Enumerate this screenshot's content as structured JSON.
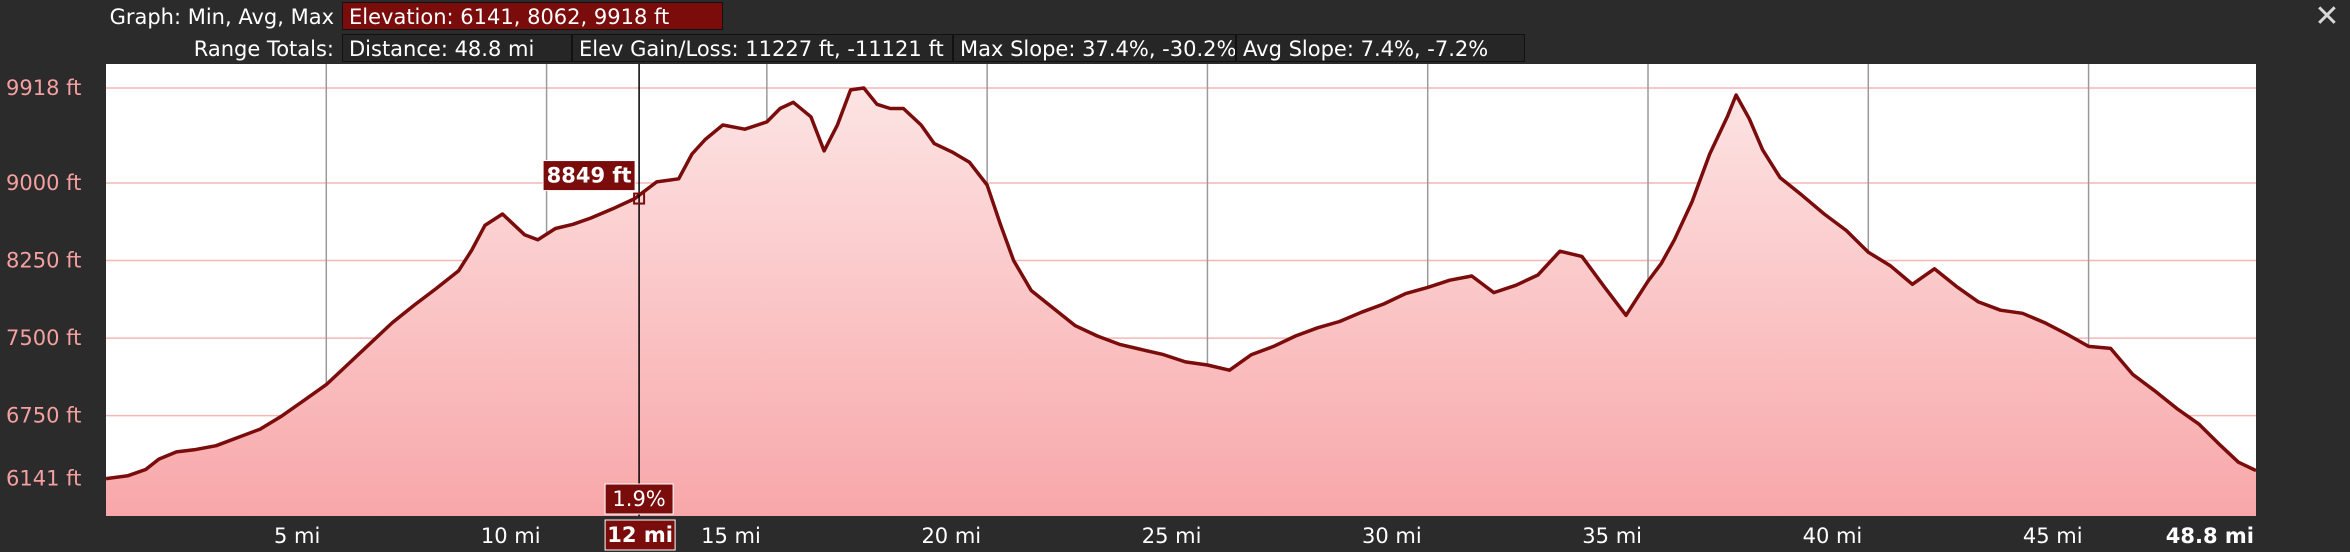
{
  "header": {
    "graph_label": "Graph: Min, Avg, Max",
    "elevation_box": "Elevation: 6141, 8062, 9918 ft",
    "range_label": "Range Totals:",
    "distance_box": "Distance: 48.8 mi",
    "gain_loss_box": "Elev Gain/Loss: 11227 ft, -11121 ft",
    "max_slope_box": "Max Slope: 37.4%, -30.2%",
    "avg_slope_box": "Avg Slope: 7.4%, -7.2%"
  },
  "cursor": {
    "distance_label": "12 mi",
    "elevation_label": "8849 ft",
    "slope_label": "1.9%"
  },
  "colors": {
    "background": "#2b2b2b",
    "plot_area": "#ffffff",
    "line": "#7a0c0c",
    "fill_top": "#fde4e4",
    "fill_bottom": "#f8a7a9",
    "grid_h": "#f4b6b6",
    "grid_v": "#9a9a9a",
    "tick_y": "#f4a0a0",
    "tick_x": "#ffffff",
    "badge": "#7a0c0c"
  },
  "chart_data": {
    "type": "area",
    "xlabel": "",
    "ylabel": "",
    "xlim": [
      0,
      48.8
    ],
    "ylim": [
      5780,
      10150
    ],
    "x_ticks": [
      {
        "value": 5,
        "label": "5 mi"
      },
      {
        "value": 10,
        "label": "10 mi"
      },
      {
        "value": 15,
        "label": "15 mi"
      },
      {
        "value": 20,
        "label": "20 mi"
      },
      {
        "value": 25,
        "label": "25 mi"
      },
      {
        "value": 30,
        "label": "30 mi"
      },
      {
        "value": 35,
        "label": "35 mi"
      },
      {
        "value": 40,
        "label": "40 mi"
      },
      {
        "value": 45,
        "label": "45 mi"
      },
      {
        "value": 48.8,
        "label": "48.8 mi"
      }
    ],
    "y_ticks": [
      {
        "value": 9918,
        "label": "9918 ft"
      },
      {
        "value": 9000,
        "label": "9000 ft"
      },
      {
        "value": 8250,
        "label": "8250 ft"
      },
      {
        "value": 7500,
        "label": "7500 ft"
      },
      {
        "value": 6750,
        "label": "6750 ft"
      },
      {
        "value": 6141,
        "label": "6141 ft"
      }
    ],
    "cursor_x": 12.1,
    "cursor_y": 8849,
    "series": [
      {
        "x": [
          0,
          0.5,
          0.9,
          1.2,
          1.6,
          2.0,
          2.5,
          3.0,
          3.5,
          4.0,
          4.5,
          5.0,
          5.5,
          6.0,
          6.5,
          7.0,
          7.5,
          8.0,
          8.3,
          8.6,
          9.0,
          9.5,
          9.8,
          10.2,
          10.6,
          11.0,
          11.5,
          12.0,
          12.5,
          13.0,
          13.3,
          13.6,
          14.0,
          14.5,
          15.0,
          15.3,
          15.6,
          16.0,
          16.3,
          16.6,
          16.9,
          17.2,
          17.5,
          17.8,
          18.1,
          18.5,
          18.8,
          19.2,
          19.6,
          20.0,
          20.3,
          20.6,
          21.0,
          21.5,
          22.0,
          22.5,
          23.0,
          23.5,
          24.0,
          24.5,
          25.0,
          25.5,
          26.0,
          26.5,
          27.0,
          27.5,
          28.0,
          28.5,
          29.0,
          29.5,
          30.0,
          30.5,
          31.0,
          31.5,
          32.0,
          32.5,
          33.0,
          33.5,
          34.0,
          34.5,
          35.0,
          35.3,
          35.6,
          36.0,
          36.4,
          36.8,
          37.0,
          37.3,
          37.6,
          38.0,
          38.5,
          39.0,
          39.5,
          40.0,
          40.5,
          41.0,
          41.5,
          42.0,
          42.5,
          43.0,
          43.5,
          44.0,
          44.5,
          45.0,
          45.5,
          46.0,
          46.5,
          47.0,
          47.5,
          48.0,
          48.4,
          48.8
        ],
        "y": [
          6141,
          6170,
          6230,
          6330,
          6400,
          6420,
          6460,
          6540,
          6620,
          6750,
          6900,
          7050,
          7250,
          7450,
          7650,
          7820,
          7980,
          8150,
          8350,
          8590,
          8700,
          8500,
          8450,
          8560,
          8600,
          8660,
          8750,
          8849,
          9010,
          9040,
          9280,
          9420,
          9560,
          9520,
          9590,
          9720,
          9780,
          9640,
          9310,
          9560,
          9900,
          9918,
          9760,
          9720,
          9720,
          9560,
          9380,
          9300,
          9200,
          8980,
          8600,
          8250,
          7960,
          7790,
          7620,
          7520,
          7440,
          7390,
          7340,
          7270,
          7240,
          7190,
          7340,
          7420,
          7520,
          7600,
          7660,
          7750,
          7830,
          7930,
          7990,
          8060,
          8100,
          7940,
          8010,
          8110,
          8340,
          8290,
          8000,
          7720,
          8050,
          8220,
          8450,
          8820,
          9280,
          9640,
          9850,
          9620,
          9320,
          9050,
          8880,
          8700,
          8540,
          8330,
          8200,
          8020,
          8170,
          8000,
          7850,
          7770,
          7740,
          7650,
          7540,
          7420,
          7400,
          7150,
          6990,
          6820,
          6670,
          6460,
          6300,
          6220
        ]
      }
    ]
  }
}
